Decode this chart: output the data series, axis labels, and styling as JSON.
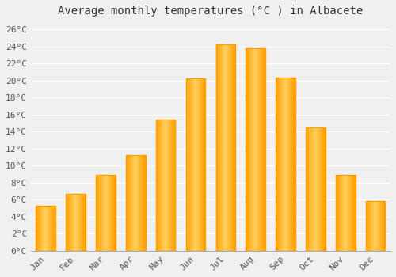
{
  "title": "Average monthly temperatures (°C ) in Albacete",
  "months": [
    "Jan",
    "Feb",
    "Mar",
    "Apr",
    "May",
    "Jun",
    "Jul",
    "Aug",
    "Sep",
    "Oct",
    "Nov",
    "Dec"
  ],
  "values": [
    5.3,
    6.7,
    8.9,
    11.2,
    15.4,
    20.2,
    24.2,
    23.8,
    20.3,
    14.5,
    8.9,
    5.8
  ],
  "bar_color_center": "#FFD060",
  "bar_color_edge": "#FFA000",
  "background_color": "#f0f0f0",
  "grid_color": "#ffffff",
  "ytick_labels": [
    "0°C",
    "2°C",
    "4°C",
    "6°C",
    "8°C",
    "10°C",
    "12°C",
    "14°C",
    "16°C",
    "18°C",
    "20°C",
    "22°C",
    "24°C",
    "26°C"
  ],
  "ytick_values": [
    0,
    2,
    4,
    6,
    8,
    10,
    12,
    14,
    16,
    18,
    20,
    22,
    24,
    26
  ],
  "ylim": [
    0,
    27
  ],
  "title_fontsize": 10,
  "tick_fontsize": 8,
  "font_family": "monospace"
}
